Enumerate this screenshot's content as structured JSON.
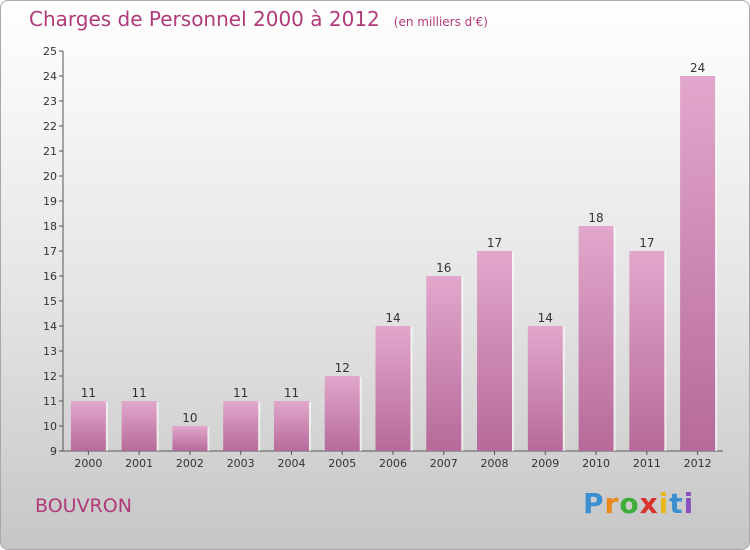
{
  "header": {
    "title": "Charges de Personnel 2000 à 2012",
    "subtitle": "(en milliers d'€)"
  },
  "footer": {
    "place": "BOUVRON",
    "brand": "Proxiti",
    "brand_colors": [
      "#3a8fd0",
      "#e8891a",
      "#3fae3a",
      "#d8322c",
      "#e8b81a",
      "#3a8fd0",
      "#8a4fc0"
    ]
  },
  "colors": {
    "bar_top": "#e2a7cc",
    "bar_bottom": "#b66a99",
    "accent": "#b03a7a"
  },
  "chart_data": {
    "type": "bar",
    "title": "Charges de Personnel 2000 à 2012",
    "subtitle": "(en milliers d'€)",
    "categories": [
      "2000",
      "2001",
      "2002",
      "2003",
      "2004",
      "2005",
      "2006",
      "2007",
      "2008",
      "2009",
      "2010",
      "2011",
      "2012"
    ],
    "values": [
      11,
      11,
      10,
      11,
      11,
      12,
      14,
      16,
      17,
      14,
      18,
      17,
      24
    ],
    "ylim": [
      9,
      25
    ],
    "yticks": [
      "9",
      "10",
      "11",
      "12",
      "13",
      "14",
      "15",
      "16",
      "17",
      "18",
      "19",
      "20",
      "21",
      "22",
      "23",
      "24",
      "25"
    ],
    "grid": false
  }
}
